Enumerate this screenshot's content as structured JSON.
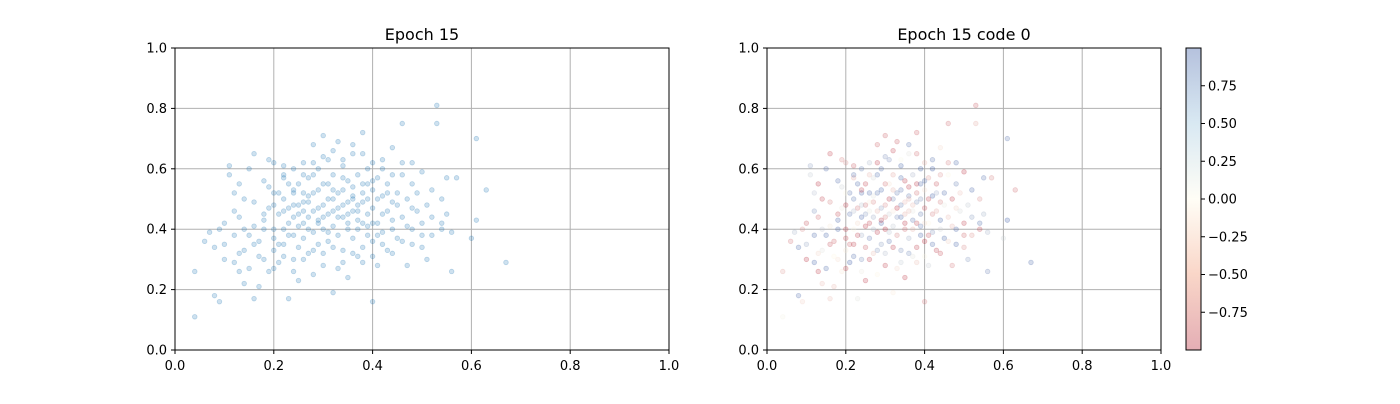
{
  "chart_data": [
    {
      "type": "scatter",
      "title": "Epoch 15",
      "xlabel": "",
      "ylabel": "",
      "xlim": [
        0.0,
        1.0
      ],
      "ylim": [
        0.0,
        1.0
      ],
      "xticks": [
        "0.0",
        "0.2",
        "0.4",
        "0.6",
        "0.8",
        "1.0"
      ],
      "yticks": [
        "0.0",
        "0.2",
        "0.4",
        "0.6",
        "0.8",
        "1.0"
      ],
      "grid": true,
      "marker_color": "#1f77b4",
      "marker_alpha": 0.22,
      "point_count_approx": 500,
      "points": [
        [
          0.04,
          0.11
        ],
        [
          0.04,
          0.26
        ],
        [
          0.06,
          0.36
        ],
        [
          0.07,
          0.39
        ],
        [
          0.08,
          0.34
        ],
        [
          0.08,
          0.18
        ],
        [
          0.09,
          0.16
        ],
        [
          0.09,
          0.4
        ],
        [
          0.1,
          0.3
        ],
        [
          0.1,
          0.42
        ],
        [
          0.11,
          0.58
        ],
        [
          0.11,
          0.61
        ],
        [
          0.12,
          0.29
        ],
        [
          0.12,
          0.46
        ],
        [
          0.12,
          0.52
        ],
        [
          0.13,
          0.44
        ],
        [
          0.13,
          0.55
        ],
        [
          0.13,
          0.26
        ],
        [
          0.14,
          0.22
        ],
        [
          0.14,
          0.33
        ],
        [
          0.15,
          0.38
        ],
        [
          0.15,
          0.27
        ],
        [
          0.15,
          0.6
        ],
        [
          0.16,
          0.17
        ],
        [
          0.16,
          0.49
        ],
        [
          0.16,
          0.65
        ],
        [
          0.17,
          0.36
        ],
        [
          0.17,
          0.21
        ],
        [
          0.17,
          0.31
        ],
        [
          0.18,
          0.43
        ],
        [
          0.18,
          0.4
        ],
        [
          0.19,
          0.54
        ],
        [
          0.19,
          0.26
        ],
        [
          0.19,
          0.63
        ],
        [
          0.2,
          0.48
        ],
        [
          0.2,
          0.37
        ],
        [
          0.2,
          0.62
        ],
        [
          0.2,
          0.33
        ],
        [
          0.21,
          0.45
        ],
        [
          0.21,
          0.29
        ],
        [
          0.21,
          0.52
        ],
        [
          0.22,
          0.4
        ],
        [
          0.22,
          0.57
        ],
        [
          0.22,
          0.61
        ],
        [
          0.22,
          0.35
        ],
        [
          0.23,
          0.47
        ],
        [
          0.23,
          0.42
        ],
        [
          0.23,
          0.17
        ],
        [
          0.24,
          0.52
        ],
        [
          0.24,
          0.44
        ],
        [
          0.24,
          0.3
        ],
        [
          0.24,
          0.38
        ],
        [
          0.25,
          0.48
        ],
        [
          0.25,
          0.55
        ],
        [
          0.25,
          0.41
        ],
        [
          0.25,
          0.23
        ],
        [
          0.26,
          0.46
        ],
        [
          0.26,
          0.62
        ],
        [
          0.26,
          0.37
        ],
        [
          0.26,
          0.52
        ],
        [
          0.27,
          0.44
        ],
        [
          0.27,
          0.57
        ],
        [
          0.27,
          0.32
        ],
        [
          0.27,
          0.49
        ],
        [
          0.28,
          0.39
        ],
        [
          0.28,
          0.68
        ],
        [
          0.28,
          0.46
        ],
        [
          0.28,
          0.25
        ],
        [
          0.29,
          0.53
        ],
        [
          0.29,
          0.42
        ],
        [
          0.29,
          0.6
        ],
        [
          0.29,
          0.35
        ],
        [
          0.3,
          0.48
        ],
        [
          0.3,
          0.71
        ],
        [
          0.3,
          0.4
        ],
        [
          0.3,
          0.28
        ],
        [
          0.31,
          0.55
        ],
        [
          0.31,
          0.45
        ],
        [
          0.31,
          0.63
        ],
        [
          0.31,
          0.36
        ],
        [
          0.32,
          0.5
        ],
        [
          0.32,
          0.41
        ],
        [
          0.32,
          0.19
        ],
        [
          0.32,
          0.58
        ],
        [
          0.33,
          0.47
        ],
        [
          0.33,
          0.69
        ],
        [
          0.33,
          0.38
        ],
        [
          0.33,
          0.27
        ],
        [
          0.34,
          0.53
        ],
        [
          0.34,
          0.44
        ],
        [
          0.34,
          0.61
        ],
        [
          0.34,
          0.33
        ],
        [
          0.35,
          0.49
        ],
        [
          0.35,
          0.4
        ],
        [
          0.35,
          0.56
        ],
        [
          0.35,
          0.24
        ],
        [
          0.36,
          0.46
        ],
        [
          0.36,
          0.65
        ],
        [
          0.36,
          0.37
        ],
        [
          0.36,
          0.51
        ],
        [
          0.37,
          0.43
        ],
        [
          0.37,
          0.58
        ],
        [
          0.37,
          0.31
        ],
        [
          0.37,
          0.48
        ],
        [
          0.38,
          0.55
        ],
        [
          0.38,
          0.42
        ],
        [
          0.38,
          0.72
        ],
        [
          0.38,
          0.29
        ],
        [
          0.39,
          0.5
        ],
        [
          0.39,
          0.38
        ],
        [
          0.39,
          0.6
        ],
        [
          0.39,
          0.45
        ],
        [
          0.4,
          0.53
        ],
        [
          0.4,
          0.16
        ],
        [
          0.4,
          0.47
        ],
        [
          0.4,
          0.36
        ],
        [
          0.41,
          0.57
        ],
        [
          0.41,
          0.42
        ],
        [
          0.41,
          0.28
        ],
        [
          0.42,
          0.51
        ],
        [
          0.42,
          0.63
        ],
        [
          0.42,
          0.39
        ],
        [
          0.43,
          0.46
        ],
        [
          0.43,
          0.55
        ],
        [
          0.43,
          0.33
        ],
        [
          0.44,
          0.49
        ],
        [
          0.44,
          0.67
        ],
        [
          0.44,
          0.4
        ],
        [
          0.45,
          0.52
        ],
        [
          0.45,
          0.37
        ],
        [
          0.46,
          0.58
        ],
        [
          0.46,
          0.44
        ],
        [
          0.46,
          0.75
        ],
        [
          0.47,
          0.5
        ],
        [
          0.47,
          0.28
        ],
        [
          0.47,
          0.41
        ],
        [
          0.48,
          0.55
        ],
        [
          0.48,
          0.62
        ],
        [
          0.48,
          0.35
        ],
        [
          0.49,
          0.46
        ],
        [
          0.49,
          0.52
        ],
        [
          0.5,
          0.42
        ],
        [
          0.5,
          0.59
        ],
        [
          0.5,
          0.38
        ],
        [
          0.51,
          0.48
        ],
        [
          0.51,
          0.3
        ],
        [
          0.52,
          0.53
        ],
        [
          0.52,
          0.44
        ],
        [
          0.53,
          0.75
        ],
        [
          0.53,
          0.81
        ],
        [
          0.54,
          0.4
        ],
        [
          0.54,
          0.5
        ],
        [
          0.55,
          0.45
        ],
        [
          0.55,
          0.57
        ],
        [
          0.56,
          0.26
        ],
        [
          0.56,
          0.39
        ],
        [
          0.57,
          0.57
        ],
        [
          0.6,
          0.37
        ],
        [
          0.61,
          0.43
        ],
        [
          0.61,
          0.7
        ],
        [
          0.63,
          0.53
        ],
        [
          0.67,
          0.29
        ],
        [
          0.14,
          0.5
        ],
        [
          0.16,
          0.41
        ],
        [
          0.18,
          0.56
        ],
        [
          0.19,
          0.47
        ],
        [
          0.2,
          0.4
        ],
        [
          0.21,
          0.35
        ],
        [
          0.22,
          0.46
        ],
        [
          0.23,
          0.55
        ],
        [
          0.24,
          0.48
        ],
        [
          0.25,
          0.34
        ],
        [
          0.26,
          0.42
        ],
        [
          0.27,
          0.51
        ],
        [
          0.28,
          0.58
        ],
        [
          0.29,
          0.47
        ],
        [
          0.3,
          0.44
        ],
        [
          0.31,
          0.5
        ],
        [
          0.32,
          0.46
        ],
        [
          0.33,
          0.52
        ],
        [
          0.34,
          0.48
        ],
        [
          0.35,
          0.45
        ],
        [
          0.36,
          0.54
        ],
        [
          0.37,
          0.4
        ],
        [
          0.38,
          0.49
        ],
        [
          0.39,
          0.55
        ],
        [
          0.4,
          0.42
        ],
        [
          0.41,
          0.5
        ],
        [
          0.42,
          0.45
        ],
        [
          0.43,
          0.52
        ],
        [
          0.44,
          0.43
        ],
        [
          0.45,
          0.48
        ],
        [
          0.23,
          0.38
        ],
        [
          0.25,
          0.45
        ],
        [
          0.27,
          0.4
        ],
        [
          0.29,
          0.43
        ],
        [
          0.31,
          0.39
        ],
        [
          0.33,
          0.44
        ],
        [
          0.35,
          0.42
        ],
        [
          0.37,
          0.46
        ],
        [
          0.39,
          0.41
        ],
        [
          0.41,
          0.38
        ],
        [
          0.22,
          0.5
        ],
        [
          0.24,
          0.53
        ],
        [
          0.26,
          0.49
        ],
        [
          0.28,
          0.52
        ],
        [
          0.3,
          0.55
        ],
        [
          0.32,
          0.53
        ],
        [
          0.34,
          0.57
        ],
        [
          0.36,
          0.5
        ],
        [
          0.38,
          0.52
        ],
        [
          0.4,
          0.56
        ],
        [
          0.18,
          0.3
        ],
        [
          0.2,
          0.27
        ],
        [
          0.22,
          0.31
        ],
        [
          0.24,
          0.26
        ],
        [
          0.26,
          0.3
        ],
        [
          0.28,
          0.33
        ],
        [
          0.3,
          0.32
        ],
        [
          0.32,
          0.34
        ],
        [
          0.34,
          0.29
        ],
        [
          0.36,
          0.32
        ],
        [
          0.38,
          0.34
        ],
        [
          0.4,
          0.31
        ],
        [
          0.42,
          0.35
        ],
        [
          0.44,
          0.32
        ],
        [
          0.46,
          0.36
        ],
        [
          0.48,
          0.4
        ],
        [
          0.5,
          0.34
        ],
        [
          0.52,
          0.38
        ],
        [
          0.54,
          0.42
        ],
        [
          0.48,
          0.47
        ],
        [
          0.3,
          0.64
        ],
        [
          0.32,
          0.66
        ],
        [
          0.34,
          0.63
        ],
        [
          0.36,
          0.68
        ],
        [
          0.38,
          0.65
        ],
        [
          0.4,
          0.62
        ],
        [
          0.42,
          0.6
        ],
        [
          0.44,
          0.58
        ],
        [
          0.46,
          0.62
        ],
        [
          0.28,
          0.62
        ],
        [
          0.26,
          0.58
        ],
        [
          0.24,
          0.6
        ],
        [
          0.22,
          0.58
        ],
        [
          0.2,
          0.52
        ],
        [
          0.18,
          0.45
        ],
        [
          0.16,
          0.35
        ],
        [
          0.14,
          0.4
        ],
        [
          0.12,
          0.38
        ],
        [
          0.1,
          0.35
        ],
        [
          0.13,
          0.32
        ]
      ]
    },
    {
      "type": "scatter",
      "title": "Epoch 15 code 0",
      "xlabel": "",
      "ylabel": "",
      "xlim": [
        0.0,
        1.0
      ],
      "ylim": [
        0.0,
        1.0
      ],
      "xticks": [
        "0.0",
        "0.2",
        "0.4",
        "0.6",
        "0.8",
        "1.0"
      ],
      "yticks": [
        "0.0",
        "0.2",
        "0.4",
        "0.6",
        "0.8",
        "1.0"
      ],
      "grid": true,
      "colormap": "RdYlBu",
      "marker_alpha": 0.22,
      "colorbar": {
        "range": [
          -1.0,
          1.0
        ],
        "ticks": [
          "0.75",
          "0.50",
          "0.25",
          "0.00",
          "−0.25",
          "−0.50",
          "−0.75"
        ],
        "tick_values": [
          0.75,
          0.5,
          0.25,
          0.0,
          -0.25,
          -0.5,
          -0.75
        ],
        "color_low": "#b2182b",
        "color_mid": "#fffbe6",
        "color_high": "#2c4f9e"
      },
      "same_points_as": 0
    }
  ]
}
